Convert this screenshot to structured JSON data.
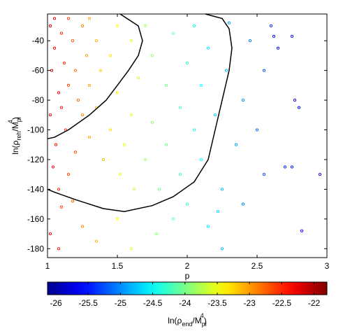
{
  "chart_data": {
    "type": "scatter",
    "xlabel": "p",
    "ylabel": {
      "parts": [
        "ln(ρ",
        "reh",
        "/M",
        "pl",
        "4",
        ")"
      ]
    },
    "xlim": [
      1,
      3
    ],
    "ylim": [
      -186,
      -22
    ],
    "xticks": [
      1,
      1.5,
      2,
      2.5,
      3
    ],
    "yticks": [
      -180,
      -160,
      -140,
      -120,
      -100,
      -80,
      -60,
      -40
    ],
    "series": [
      {
        "x": [
          1.02,
          1.05,
          1.03,
          1.08,
          1.02,
          1.06,
          1.04,
          1.1,
          1.12,
          1.15,
          1.1,
          1.13,
          1.18,
          1.2,
          1.22,
          1.25,
          1.28,
          1.3,
          1.25,
          1.2,
          1.15,
          1.08,
          1.1,
          1.18,
          1.3,
          1.35,
          1.38,
          1.35,
          1.4,
          1.45,
          1.45,
          1.5,
          1.5,
          1.52,
          1.55,
          1.6,
          1.6,
          1.62,
          1.65,
          1.7,
          1.7,
          1.75,
          1.75,
          1.78,
          1.8,
          1.85,
          1.85,
          1.9,
          1.9,
          1.95,
          1.95,
          2.0,
          2.0,
          2.05,
          2.05,
          2.1,
          2.1,
          2.15,
          2.15,
          2.2,
          2.25,
          2.28,
          2.3,
          2.35,
          2.4,
          2.4,
          2.45,
          2.5,
          2.55,
          2.55,
          2.6,
          2.62,
          2.65,
          2.7,
          2.75,
          2.77,
          2.8,
          2.75,
          2.95,
          2.82,
          1.02,
          1.08,
          1.25,
          1.35,
          1.5,
          1.6,
          2.25,
          2.22,
          1.05,
          1.15,
          1.3
        ],
        "y": [
          -30,
          -45,
          -60,
          -75,
          -90,
          -110,
          -125,
          -35,
          -55,
          -70,
          -85,
          -100,
          -40,
          -60,
          -80,
          -30,
          -50,
          -70,
          -90,
          -115,
          -130,
          -140,
          -152,
          -148,
          -105,
          -40,
          -60,
          -85,
          -120,
          -50,
          -100,
          -30,
          -75,
          -130,
          -110,
          -40,
          -90,
          -140,
          -65,
          -30,
          -120,
          -50,
          -95,
          -170,
          -140,
          -70,
          -110,
          -35,
          -160,
          -85,
          -130,
          -55,
          -150,
          -100,
          -30,
          -120,
          -70,
          -45,
          -165,
          -90,
          -140,
          -60,
          -28,
          -110,
          -80,
          -150,
          -40,
          -100,
          -60,
          -130,
          -30,
          -37,
          -45,
          -125,
          -37,
          -80,
          -85,
          -125,
          -130,
          -168,
          -170,
          -180,
          -165,
          -175,
          -160,
          -180,
          -180,
          -155,
          -25,
          -25,
          -25
        ],
        "z": [
          -22.2,
          -22.3,
          -22.1,
          -22.3,
          -22.2,
          -22.4,
          -22.3,
          -22.5,
          -22.5,
          -22.6,
          -22.4,
          -22.5,
          -22.7,
          -22.8,
          -22.8,
          -22.9,
          -23.0,
          -23.0,
          -22.9,
          -22.7,
          -22.6,
          -22.5,
          -22.6,
          -22.8,
          -23.0,
          -23.1,
          -23.2,
          -23.1,
          -23.2,
          -23.3,
          -23.3,
          -23.4,
          -23.4,
          -23.5,
          -23.5,
          -23.6,
          -23.6,
          -23.7,
          -23.7,
          -23.8,
          -23.8,
          -23.9,
          -23.9,
          -23.9,
          -24.0,
          -24.0,
          -24.0,
          -24.1,
          -24.1,
          -24.2,
          -24.2,
          -24.3,
          -24.3,
          -24.4,
          -24.4,
          -24.5,
          -24.5,
          -24.6,
          -24.6,
          -24.7,
          -24.8,
          -24.8,
          -24.9,
          -24.9,
          -25.0,
          -25.0,
          -25.1,
          -25.2,
          -25.3,
          -25.3,
          -25.4,
          -25.6,
          -25.7,
          -25.5,
          -25.6,
          -25.6,
          -25.7,
          -25.7,
          -25.7,
          -25.6,
          -22.3,
          -22.4,
          -22.9,
          -23.1,
          -23.4,
          -23.6,
          -24.8,
          -24.7,
          -22.2,
          -22.6,
          -23.0
        ]
      }
    ],
    "contours": [
      {
        "color": "#000000",
        "x": [
          1.52,
          1.65,
          1.68,
          1.65,
          1.58,
          1.5,
          1.42,
          1.3,
          1.15,
          1.05,
          1
        ],
        "y": [
          -22,
          -30,
          -40,
          -50,
          -60,
          -70,
          -80,
          -90,
          -100,
          -105,
          -106
        ]
      },
      {
        "color": "#000000",
        "x": [
          2.13,
          2.25,
          2.3,
          2.32,
          2.3,
          2.25,
          2.2,
          2.15,
          2.05,
          1.9,
          1.75,
          1.55,
          1.4,
          1.2,
          1.05,
          1
        ],
        "y": [
          -22,
          -25,
          -32,
          -45,
          -60,
          -80,
          -100,
          -120,
          -135,
          -145,
          -151,
          -155,
          -153,
          -147,
          -142,
          -140
        ]
      }
    ],
    "colorbar": {
      "clim": [
        -26.13,
        -21.8
      ],
      "ticks": [
        -26,
        -25.5,
        -25,
        -24.5,
        -24,
        -23.5,
        -23,
        -22.5,
        -22
      ],
      "label": {
        "parts": [
          "ln(ρ",
          "end",
          "/M",
          "pl",
          "4",
          ")"
        ]
      }
    }
  }
}
